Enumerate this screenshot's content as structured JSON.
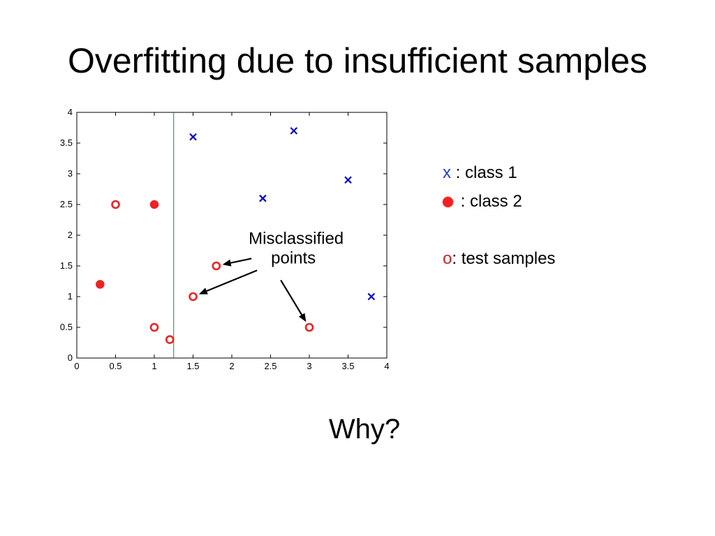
{
  "slide": {
    "title": "Overfitting due to insufficient samples",
    "why": "Why?"
  },
  "legend": {
    "class1_marker": "x",
    "class1_label": " : class 1",
    "class2_label": " : class 2",
    "test_marker": "o",
    "test_label": ": test samples"
  },
  "colors": {
    "class1": "#0000cc",
    "class2": "#ee2222",
    "test": "#ee2222",
    "boundary": "#228b22",
    "legend_x": "#1f3fcf",
    "legend_o": "#d62020"
  },
  "chart_data": {
    "type": "scatter",
    "title": "",
    "xlabel": "",
    "ylabel": "",
    "xlim": [
      0,
      4
    ],
    "ylim": [
      0,
      4
    ],
    "xticks": [
      0,
      0.5,
      1,
      1.5,
      2,
      2.5,
      3,
      3.5,
      4
    ],
    "yticks": [
      0,
      0.5,
      1,
      1.5,
      2,
      2.5,
      3,
      3.5,
      4
    ],
    "xtick_labels": [
      "0",
      "0.5",
      "1",
      "1.5",
      "2",
      "2.5",
      "3",
      "3.5",
      "4"
    ],
    "ytick_labels": [
      "0",
      "0.5",
      "1",
      "1.5",
      "2",
      "2.5",
      "3",
      "3.5",
      "4"
    ],
    "grid": false,
    "series": [
      {
        "marker": "x",
        "x": [
          1.5,
          2.8,
          2.4,
          3.5,
          3.8
        ],
        "y": [
          3.6,
          3.7,
          2.6,
          2.9,
          1.0
        ]
      },
      {
        "marker": "filled-circle",
        "x": [
          1.0,
          0.3
        ],
        "y": [
          2.5,
          1.2
        ]
      },
      {
        "marker": "open-circle",
        "x": [
          0.5,
          1.8,
          1.5,
          1.0,
          1.2,
          3.0
        ],
        "y": [
          2.5,
          1.5,
          1.0,
          0.5,
          0.3,
          0.5
        ]
      }
    ],
    "decision_boundary_x": 1.25,
    "annotation": {
      "text_lines": [
        "Misclassified",
        "points"
      ],
      "anchor_data": [
        2.65,
        1.7
      ],
      "arrow_targets": [
        [
          1.8,
          1.5
        ],
        [
          1.5,
          1.0
        ],
        [
          3.0,
          0.5
        ]
      ]
    }
  }
}
